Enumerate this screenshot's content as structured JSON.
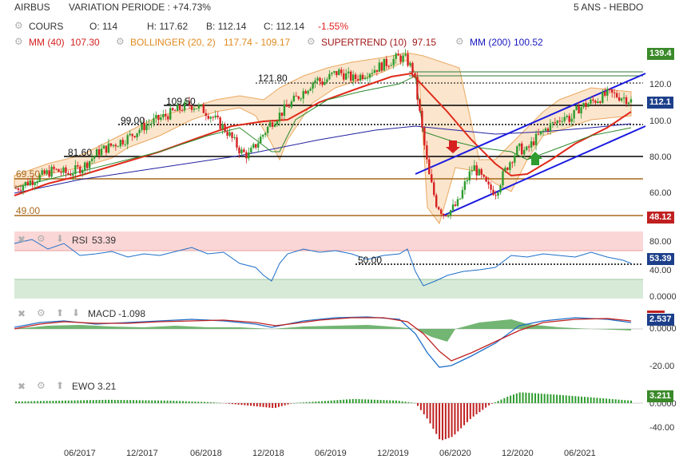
{
  "header": {
    "symbol": "AIRBUS",
    "variation": "VARIATION PERIODE : +74.73%",
    "period": "5 ANS - HEBDO"
  },
  "quote": {
    "cours_label": "COURS",
    "open": "O: 114",
    "high": "H: 117.62",
    "low": "B: 112.14",
    "close": "C: 112.14",
    "change": "-1.55%"
  },
  "indicators": {
    "mm40": "MM (40)",
    "mm40_value": "107.30",
    "bollinger": "BOLLINGER (20, 2)",
    "bollinger_value": "117.74 - 109.17",
    "supertrend": "SUPERTREND (10)",
    "supertrend_value": "97.15",
    "mm200": "MM (200)",
    "mm200_value": "100.52"
  },
  "colors": {
    "price_up": "#2e9c2e",
    "price_down": "#d62020",
    "mm40": "#e02a1a",
    "bollinger": "#e8a050",
    "supertrend": "#2d8a2d",
    "mm200": "#2020a0",
    "trend_channel": "#1a1ae0",
    "support": "#a86a1c",
    "rsi": "#1f6fc8",
    "macd": "#1f6fc8",
    "macd_signal": "#c02020",
    "ewo_pos": "#2e9c2e",
    "ewo_neg": "#c02020"
  },
  "chart_data": [
    {
      "type": "candlestick",
      "x_ticks": [
        "06/2017",
        "12/2017",
        "06/2018",
        "12/2018",
        "06/2019",
        "12/2019",
        "06/2020",
        "12/2020",
        "06/2021"
      ],
      "y_ticks": [
        "120.0",
        "100.0",
        "80.00",
        "60.00"
      ],
      "ylim": [
        40,
        140
      ],
      "levels": [
        {
          "label": "121.80",
          "value": 121.8,
          "style": "dotted"
        },
        {
          "label": "109.50",
          "value": 109.5,
          "style": "solid"
        },
        {
          "label": "99.00",
          "value": 99.0,
          "style": "dotted"
        },
        {
          "label": "81.60",
          "value": 81.6,
          "style": "solid"
        },
        {
          "label": "69.50",
          "value": 69.5,
          "style": "solid"
        },
        {
          "label": "49.00",
          "value": 49.0,
          "style": "solid"
        }
      ],
      "price_tags": [
        {
          "label": "139.4",
          "value": 139.4,
          "color": "#3a8a2a"
        },
        {
          "label": "112.1",
          "value": 112.1,
          "color": "#1c3f8a"
        },
        {
          "label": "48.12",
          "value": 48.12,
          "color": "#c02020"
        }
      ],
      "close_path": [
        64,
        66,
        68,
        70,
        72,
        74,
        73,
        72,
        74,
        76,
        80,
        84,
        86,
        88,
        90,
        92,
        95,
        98,
        100,
        102,
        104,
        106,
        108,
        110,
        109,
        107,
        104,
        100,
        96,
        90,
        84,
        82,
        88,
        94,
        100,
        104,
        108,
        112,
        116,
        120,
        124,
        122,
        126,
        128,
        126,
        124,
        126,
        128,
        130,
        132,
        134,
        136,
        135,
        128,
        100,
        72,
        56,
        50,
        52,
        56,
        68,
        76,
        70,
        64,
        62,
        72,
        80,
        86,
        84,
        90,
        94,
        98,
        100,
        104,
        102,
        108,
        110,
        112,
        114,
        116,
        115,
        114,
        112
      ]
    },
    {
      "type": "line",
      "name": "RSI",
      "label": "RSI",
      "value": "53.39",
      "y_ticks": [
        "80.00",
        "40.00",
        "0.0000"
      ],
      "ylim": [
        0,
        100
      ],
      "level_label": "50.00",
      "tag": "53.39"
    },
    {
      "type": "line",
      "name": "MACD",
      "label": "MACD",
      "value": "-1.098",
      "y_ticks": [
        "0.0000",
        "-20.00"
      ],
      "ylim": [
        -25,
        5
      ],
      "tags": [
        "2.537",
        "-1.098"
      ]
    },
    {
      "type": "bar",
      "name": "EWO",
      "label": "EWO",
      "value": "3.21",
      "y_ticks": [
        "0.0000",
        "-40.00"
      ],
      "ylim": [
        -50,
        15
      ],
      "tag": "3.211"
    }
  ]
}
